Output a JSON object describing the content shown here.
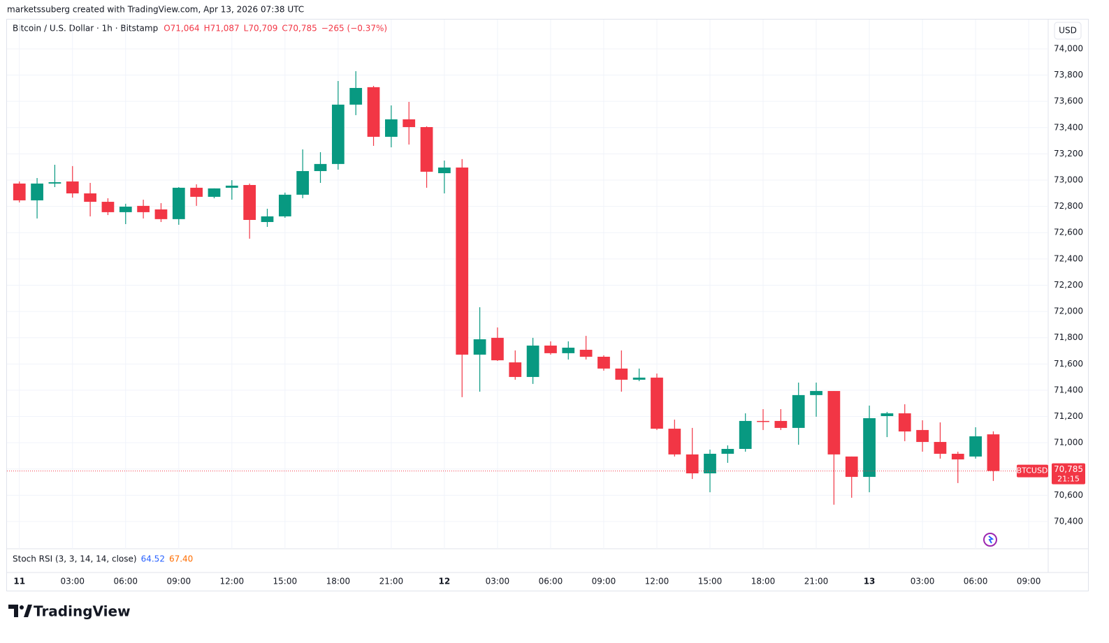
{
  "header": {
    "credit": "marketssuberg created with TradingView.com, Apr 13, 2026 07:38 UTC"
  },
  "chart_data": {
    "type": "candlestick",
    "title": "Bitcoin / U.S. Dollar · 1h · Bitstamp",
    "legend_values": [
      "O71,064",
      "H71,087",
      "L70,709",
      "C70,785",
      "−265 (−0.37%)"
    ],
    "currency": "USD",
    "symbol": "BTCUSD",
    "last_price_label": "70,785",
    "countdown": "21:15",
    "up_color": "#089981",
    "down_color": "#f23645",
    "grid": true,
    "x": [
      0,
      1,
      2,
      3,
      4,
      5,
      6,
      7,
      8,
      9,
      10,
      11,
      12,
      13,
      14,
      15,
      16,
      17,
      18,
      19,
      20,
      21,
      22,
      23,
      24,
      25,
      26,
      27,
      28,
      29,
      30,
      31,
      32,
      33,
      34,
      35,
      36,
      37,
      38,
      39,
      40,
      41,
      42,
      43,
      44,
      45,
      46,
      47,
      48,
      49,
      50,
      51,
      52,
      53,
      54,
      55
    ],
    "open": [
      72974,
      72846,
      72974,
      72990,
      72899,
      72835,
      72756,
      72804,
      72777,
      72703,
      72942,
      72873,
      72942,
      72963,
      72681,
      72724,
      72889,
      73069,
      73123,
      73575,
      73708,
      73330,
      73463,
      73404,
      73053,
      73096,
      71671,
      71799,
      71612,
      71501,
      71740,
      71682,
      71708,
      71655,
      71565,
      71480,
      71496,
      71107,
      70911,
      70767,
      70916,
      70953,
      71166,
      71166,
      71113,
      71363,
      71394,
      70895,
      70740,
      71203,
      71224,
      71097,
      71006,
      70916,
      70895,
      71064
    ],
    "high": [
      72990,
      73016,
      73117,
      73107,
      72979,
      72862,
      72820,
      72851,
      72825,
      72947,
      72968,
      72937,
      73000,
      72974,
      72782,
      72905,
      73234,
      73213,
      73755,
      73830,
      73718,
      73569,
      73596,
      73410,
      73149,
      73160,
      72032,
      71878,
      71703,
      71799,
      71772,
      71772,
      71814,
      71666,
      71703,
      71565,
      71527,
      71176,
      71113,
      70948,
      70980,
      71224,
      71256,
      71256,
      71458,
      71458,
      71394,
      70895,
      71283,
      71235,
      71293,
      71171,
      71155,
      70932,
      71118,
      71087
    ],
    "low": [
      72830,
      72708,
      72947,
      72867,
      72724,
      72734,
      72665,
      72708,
      72681,
      72660,
      72804,
      72862,
      72851,
      72554,
      72644,
      72713,
      72862,
      72979,
      73080,
      73495,
      73261,
      73250,
      73271,
      72942,
      72899,
      71347,
      71389,
      71623,
      71480,
      71448,
      71671,
      71634,
      71634,
      71549,
      71389,
      71469,
      71097,
      70895,
      70724,
      70623,
      70847,
      70932,
      71097,
      71097,
      70985,
      71198,
      70528,
      70581,
      70623,
      71043,
      71012,
      70932,
      70879,
      70693,
      70879,
      70709
    ],
    "close": [
      72846,
      72974,
      72984,
      72899,
      72835,
      72756,
      72798,
      72756,
      72703,
      72942,
      72873,
      72937,
      72958,
      72697,
      72724,
      72889,
      73069,
      73123,
      73575,
      73702,
      73330,
      73463,
      73404,
      73064,
      73096,
      71671,
      71788,
      71628,
      71501,
      71740,
      71682,
      71724,
      71655,
      71565,
      71480,
      71496,
      71107,
      70911,
      70767,
      70916,
      70953,
      71166,
      71160,
      71113,
      71363,
      71394,
      70911,
      70740,
      71187,
      71224,
      71086,
      71006,
      70916,
      70873,
      71049,
      70785
    ],
    "xlim": [
      -0.7,
      58.1
    ],
    "xticks": [
      {
        "value": 0,
        "label": "11"
      },
      {
        "value": 3,
        "label": "03:00"
      },
      {
        "value": 6,
        "label": "06:00"
      },
      {
        "value": 9,
        "label": "09:00"
      },
      {
        "value": 12,
        "label": "12:00"
      },
      {
        "value": 15,
        "label": "15:00"
      },
      {
        "value": 18,
        "label": "18:00"
      },
      {
        "value": 21,
        "label": "21:00"
      },
      {
        "value": 24,
        "label": "12"
      },
      {
        "value": 27,
        "label": "03:00"
      },
      {
        "value": 30,
        "label": "06:00"
      },
      {
        "value": 33,
        "label": "09:00"
      },
      {
        "value": 36,
        "label": "12:00"
      },
      {
        "value": 39,
        "label": "15:00"
      },
      {
        "value": 42,
        "label": "18:00"
      },
      {
        "value": 45,
        "label": "21:00"
      },
      {
        "value": 48,
        "label": "13"
      },
      {
        "value": 51,
        "label": "03:00"
      },
      {
        "value": 54,
        "label": "06:00"
      },
      {
        "value": 57,
        "label": "09:00"
      }
    ],
    "ylim": [
      70198,
      74223
    ],
    "yticks": [
      {
        "value": 70400,
        "label": "70,400"
      },
      {
        "value": 70600,
        "label": "70,600"
      },
      {
        "value": 70800,
        "label": "70,800"
      },
      {
        "value": 71000,
        "label": "71,000"
      },
      {
        "value": 71200,
        "label": "71,200"
      },
      {
        "value": 71400,
        "label": "71,400"
      },
      {
        "value": 71600,
        "label": "71,600"
      },
      {
        "value": 71800,
        "label": "71,800"
      },
      {
        "value": 72000,
        "label": "72,000"
      },
      {
        "value": 72200,
        "label": "72,200"
      },
      {
        "value": 72400,
        "label": "72,400"
      },
      {
        "value": 72600,
        "label": "72,600"
      },
      {
        "value": 72800,
        "label": "72,800"
      },
      {
        "value": 73000,
        "label": "73,000"
      },
      {
        "value": 73200,
        "label": "73,200"
      },
      {
        "value": 73400,
        "label": "73,400"
      },
      {
        "value": 73600,
        "label": "73,600"
      },
      {
        "value": 73800,
        "label": "73,800"
      },
      {
        "value": 74000,
        "label": "74,000"
      }
    ],
    "indicator": {
      "name": "Stoch RSI (3, 3, 14, 14, close)",
      "k": 64.52,
      "d": 67.4,
      "k_label": "64.52",
      "d_label": "67.40",
      "k_color": "#2962ff",
      "d_color": "#ff6d00"
    },
    "brand": "TradingView"
  }
}
